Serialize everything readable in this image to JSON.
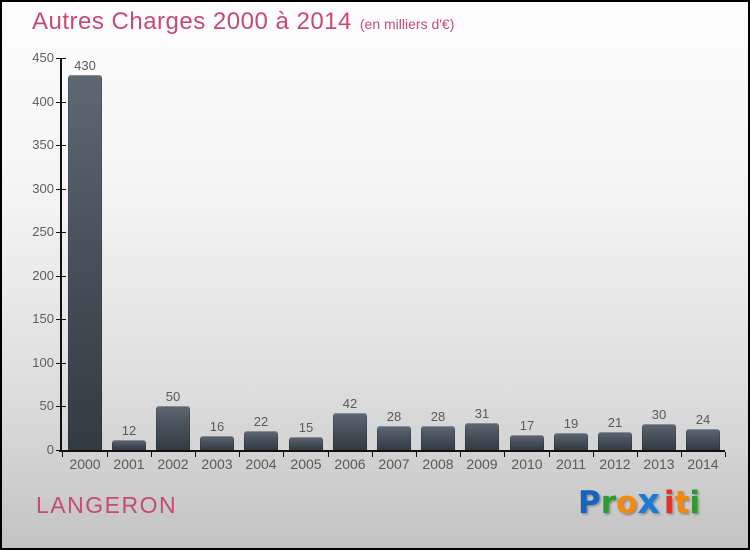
{
  "header": {
    "title": "Autres Charges 2000 à 2014",
    "subtitle": "(en milliers d'€)"
  },
  "chart_data": {
    "type": "bar",
    "title": "Autres Charges 2000 à 2014",
    "subtitle": "(en milliers d'€)",
    "categories": [
      "2000",
      "2001",
      "2002",
      "2003",
      "2004",
      "2005",
      "2006",
      "2007",
      "2008",
      "2009",
      "2010",
      "2011",
      "2012",
      "2013",
      "2014"
    ],
    "values": [
      430,
      12,
      50,
      16,
      22,
      15,
      42,
      28,
      28,
      31,
      17,
      19,
      21,
      30,
      24
    ],
    "xlabel": "",
    "ylabel": "",
    "ylim": [
      0,
      450
    ],
    "yticks": [
      0,
      50,
      100,
      150,
      200,
      250,
      300,
      350,
      400,
      450
    ],
    "grid": false,
    "legend": "none",
    "value_labels_shown": true,
    "bar_color_top": "#5d6872",
    "bar_color_bottom": "#323a42"
  },
  "footer": {
    "place_label": "LANGERON",
    "logo_text": "Proxiti",
    "logo_letters": [
      {
        "ch": "P",
        "color": "#1565c0",
        "big": false,
        "gap": false
      },
      {
        "ch": "r",
        "color": "#2e9b2e",
        "big": false,
        "gap": false
      },
      {
        "ch": "o",
        "color": "#f5890f",
        "big": false,
        "gap": false
      },
      {
        "ch": "x",
        "color": "#1e78d7",
        "big": true,
        "gap": false
      },
      {
        "ch": "i",
        "color": "#e53125",
        "big": false,
        "gap": true
      },
      {
        "ch": "t",
        "color": "#f5890f",
        "big": false,
        "gap": false
      },
      {
        "ch": "i",
        "color": "#2e9b2e",
        "big": false,
        "gap": false
      }
    ]
  },
  "colors": {
    "title_pink": "#c64a78",
    "axis_black": "#111111",
    "label_gray": "#5a5a5a",
    "background_top": "#fdfdfd",
    "background_bottom": "#c3c3c3"
  }
}
